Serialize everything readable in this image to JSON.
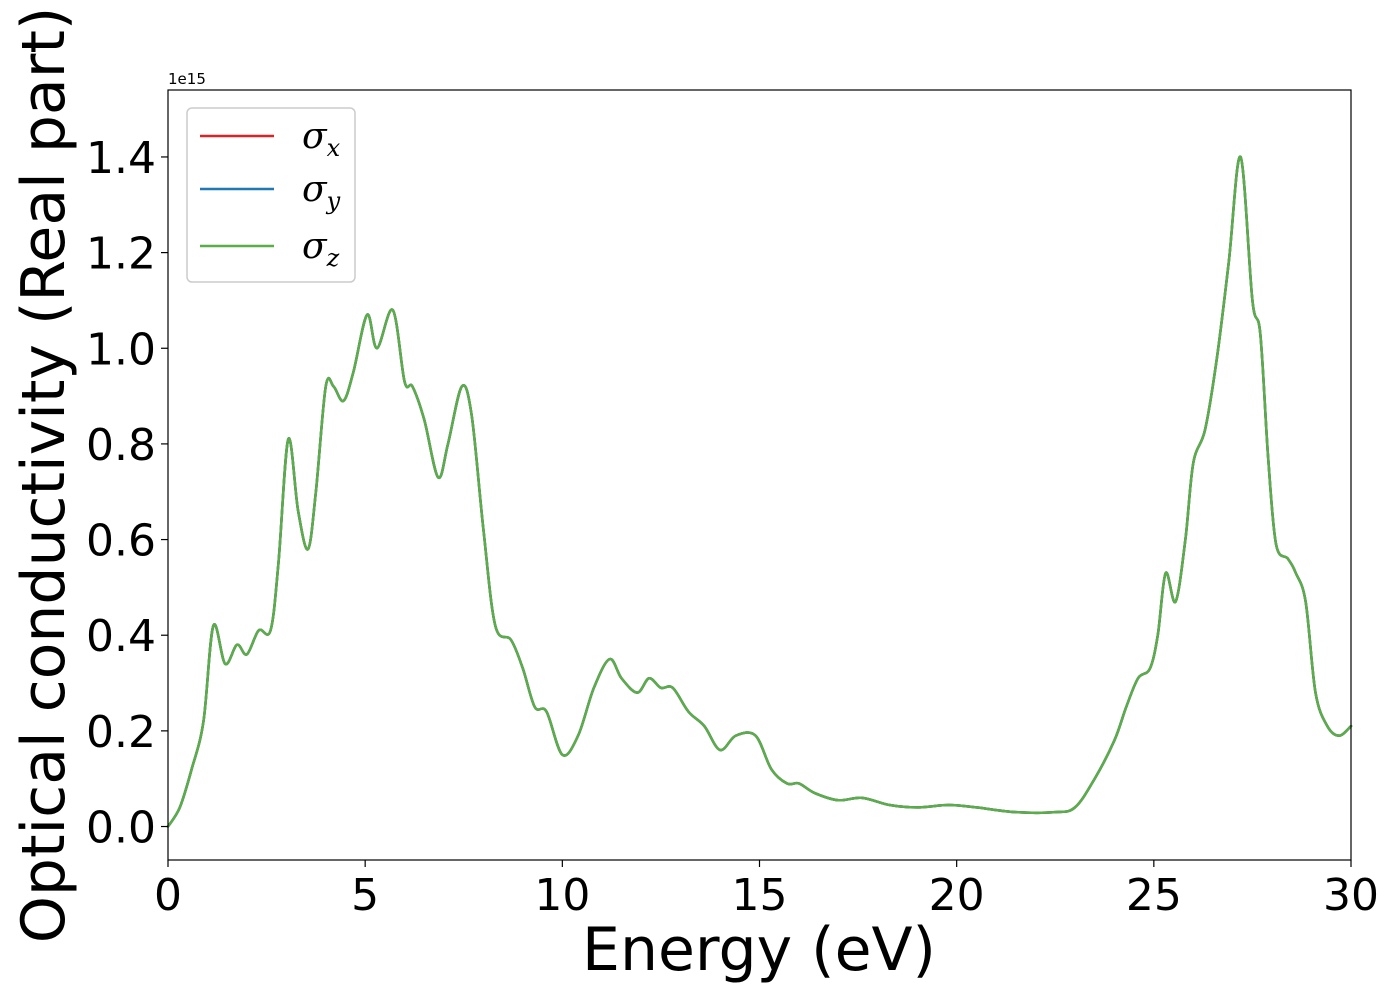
{
  "chart_data": {
    "type": "line",
    "xlabel": "Energy (eV)",
    "ylabel": "Optical conductivity (Real part)",
    "y_offset_label": "1e15",
    "y_scale_factor": 1000000000000000.0,
    "xlim": [
      0,
      30
    ],
    "ylim": [
      -0.07,
      1.54
    ],
    "x_ticks": [
      0,
      5,
      10,
      15,
      20,
      25,
      30
    ],
    "x_tick_labels": [
      "0",
      "5",
      "10",
      "15",
      "20",
      "25",
      "30"
    ],
    "y_ticks": [
      0.0,
      0.2,
      0.4,
      0.6,
      0.8,
      1.0,
      1.2,
      1.4
    ],
    "y_tick_labels": [
      "0.0",
      "0.2",
      "0.4",
      "0.6",
      "0.8",
      "1.0",
      "1.2",
      "1.4"
    ],
    "grid": false,
    "legend_position": "top-left",
    "x": [
      0,
      0.3,
      0.6,
      0.9,
      1.15,
      1.45,
      1.75,
      2.0,
      2.3,
      2.6,
      2.8,
      3.05,
      3.3,
      3.55,
      3.75,
      4.0,
      4.2,
      4.45,
      4.7,
      5.05,
      5.3,
      5.7,
      6.0,
      6.2,
      6.5,
      6.85,
      7.1,
      7.45,
      7.7,
      8.0,
      8.3,
      8.7,
      9.0,
      9.3,
      9.6,
      10.0,
      10.4,
      10.8,
      11.2,
      11.5,
      11.9,
      12.2,
      12.5,
      12.8,
      13.2,
      13.6,
      14.0,
      14.4,
      14.9,
      15.3,
      15.7,
      16.0,
      16.4,
      17.0,
      17.6,
      18.3,
      19.0,
      19.8,
      20.5,
      21.5,
      22.5,
      23.0,
      23.5,
      24.0,
      24.3,
      24.6,
      24.9,
      25.1,
      25.3,
      25.55,
      25.8,
      26.0,
      26.3,
      26.6,
      26.9,
      27.2,
      27.5,
      27.7,
      27.9,
      28.1,
      28.4,
      28.6,
      28.85,
      29.1,
      29.4,
      29.7,
      30.0
    ],
    "series": [
      {
        "name": "σx",
        "color": "#d62728",
        "values": [
          0.0,
          0.04,
          0.12,
          0.22,
          0.42,
          0.34,
          0.38,
          0.36,
          0.41,
          0.41,
          0.55,
          0.81,
          0.66,
          0.58,
          0.7,
          0.92,
          0.92,
          0.89,
          0.95,
          1.07,
          1.0,
          1.08,
          0.93,
          0.92,
          0.85,
          0.73,
          0.8,
          0.92,
          0.86,
          0.62,
          0.42,
          0.39,
          0.33,
          0.25,
          0.24,
          0.15,
          0.19,
          0.29,
          0.35,
          0.31,
          0.28,
          0.31,
          0.29,
          0.29,
          0.24,
          0.21,
          0.16,
          0.19,
          0.19,
          0.12,
          0.09,
          0.09,
          0.07,
          0.055,
          0.06,
          0.045,
          0.04,
          0.045,
          0.04,
          0.03,
          0.03,
          0.04,
          0.1,
          0.18,
          0.25,
          0.31,
          0.33,
          0.4,
          0.53,
          0.47,
          0.6,
          0.76,
          0.83,
          0.98,
          1.18,
          1.4,
          1.1,
          1.03,
          0.77,
          0.59,
          0.56,
          0.53,
          0.47,
          0.28,
          0.21,
          0.19,
          0.21
        ]
      },
      {
        "name": "σy",
        "color": "#1f77b4",
        "values": [
          0.0,
          0.04,
          0.12,
          0.22,
          0.42,
          0.34,
          0.38,
          0.36,
          0.41,
          0.41,
          0.55,
          0.81,
          0.66,
          0.58,
          0.7,
          0.92,
          0.92,
          0.89,
          0.95,
          1.07,
          1.0,
          1.08,
          0.93,
          0.92,
          0.85,
          0.73,
          0.8,
          0.92,
          0.86,
          0.62,
          0.42,
          0.39,
          0.33,
          0.25,
          0.24,
          0.15,
          0.19,
          0.29,
          0.35,
          0.31,
          0.28,
          0.31,
          0.29,
          0.29,
          0.24,
          0.21,
          0.16,
          0.19,
          0.19,
          0.12,
          0.09,
          0.09,
          0.07,
          0.055,
          0.06,
          0.045,
          0.04,
          0.045,
          0.04,
          0.03,
          0.03,
          0.04,
          0.1,
          0.18,
          0.25,
          0.31,
          0.33,
          0.4,
          0.53,
          0.47,
          0.6,
          0.76,
          0.83,
          0.98,
          1.18,
          1.4,
          1.1,
          1.03,
          0.77,
          0.59,
          0.56,
          0.53,
          0.47,
          0.28,
          0.21,
          0.19,
          0.21
        ]
      },
      {
        "name": "σz",
        "color": "#5aad48",
        "values": [
          0.0,
          0.04,
          0.12,
          0.22,
          0.42,
          0.34,
          0.38,
          0.36,
          0.41,
          0.41,
          0.55,
          0.81,
          0.66,
          0.58,
          0.7,
          0.92,
          0.92,
          0.89,
          0.95,
          1.07,
          1.0,
          1.08,
          0.93,
          0.92,
          0.85,
          0.73,
          0.8,
          0.92,
          0.86,
          0.62,
          0.42,
          0.39,
          0.33,
          0.25,
          0.24,
          0.15,
          0.19,
          0.29,
          0.35,
          0.31,
          0.28,
          0.31,
          0.29,
          0.29,
          0.24,
          0.21,
          0.16,
          0.19,
          0.19,
          0.12,
          0.09,
          0.09,
          0.07,
          0.055,
          0.06,
          0.045,
          0.04,
          0.045,
          0.04,
          0.03,
          0.03,
          0.04,
          0.1,
          0.18,
          0.25,
          0.31,
          0.33,
          0.4,
          0.53,
          0.47,
          0.6,
          0.76,
          0.83,
          0.98,
          1.18,
          1.4,
          1.1,
          1.03,
          0.77,
          0.59,
          0.56,
          0.53,
          0.47,
          0.28,
          0.21,
          0.19,
          0.21
        ]
      }
    ]
  }
}
